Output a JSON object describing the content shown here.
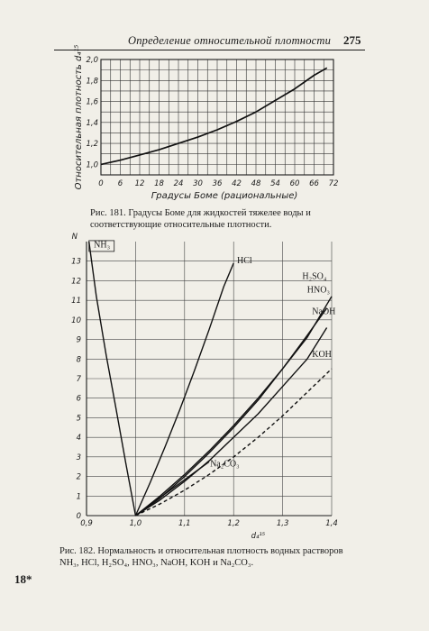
{
  "page": {
    "running_head": "Определение относительной плотности",
    "page_number": "275",
    "signature_mark": "18*"
  },
  "captions": {
    "fig181": "Рис. 181. Градусы Боме для жидкостей тяжелее воды и соответствующие относительные плотности.",
    "fig182": "Рис. 182. Нормальность и относительная плотность водных растворов NH₃, HCl, H₂SO₄, HNO₃, NaOH, KOH и Na₂CO₃."
  },
  "chart_data": [
    {
      "type": "line",
      "xlabel": "Градусы Боме (рациональные)",
      "ylabel": "Относительная плотность d₄¹⁵",
      "x_ticks": [
        "0",
        "6",
        "12",
        "18",
        "24",
        "30",
        "36",
        "42",
        "48",
        "54",
        "60",
        "66",
        "72"
      ],
      "y_ticks": [
        "1,0",
        "1,2",
        "1,4",
        "1,6",
        "1,8",
        "2,0"
      ],
      "xlim": [
        0,
        72
      ],
      "ylim": [
        0.9,
        2.0
      ],
      "grid": true,
      "series": [
        {
          "x": [
            0,
            6,
            12,
            18,
            24,
            30,
            36,
            42,
            48,
            54,
            60,
            66,
            70
          ],
          "y": [
            1.0,
            1.04,
            1.09,
            1.14,
            1.2,
            1.26,
            1.33,
            1.41,
            1.5,
            1.61,
            1.72,
            1.85,
            1.92
          ]
        }
      ]
    },
    {
      "type": "line",
      "xlabel": "d₄¹⁵",
      "ylabel": "N",
      "x_ticks": [
        "0,9",
        "1,0",
        "1,1",
        "1,2",
        "1,3",
        "1,4"
      ],
      "y_ticks": [
        "0",
        "1",
        "2",
        "3",
        "4",
        "5",
        "6",
        "7",
        "8",
        "9",
        "10",
        "11",
        "12",
        "13"
      ],
      "xlim": [
        0.9,
        1.4
      ],
      "ylim": [
        0,
        14
      ],
      "grid": true,
      "series": [
        {
          "name": "NH₃",
          "x": [
            0.905,
            0.92,
            0.94,
            0.96,
            0.98,
            1.0
          ],
          "y": [
            14,
            11.2,
            8.2,
            5.5,
            2.7,
            0
          ]
        },
        {
          "name": "HCl",
          "x": [
            1.0,
            1.03,
            1.06,
            1.09,
            1.12,
            1.15,
            1.18,
            1.2
          ],
          "y": [
            0,
            1.7,
            3.5,
            5.4,
            7.4,
            9.5,
            11.7,
            12.9
          ]
        },
        {
          "name": "H₂SO₄",
          "x": [
            1.0,
            1.05,
            1.1,
            1.15,
            1.2,
            1.25,
            1.3,
            1.35,
            1.4
          ],
          "y": [
            0,
            1.0,
            2.1,
            3.3,
            4.6,
            6.0,
            7.5,
            9.1,
            11.2
          ]
        },
        {
          "name": "HNO₃",
          "x": [
            1.0,
            1.05,
            1.1,
            1.15,
            1.2,
            1.25,
            1.3,
            1.35,
            1.39
          ],
          "y": [
            0,
            0.9,
            2.0,
            3.2,
            4.5,
            5.9,
            7.5,
            9.2,
            10.6
          ]
        },
        {
          "name": "NaOH",
          "x": [
            1.0,
            1.05,
            1.1,
            1.15,
            1.2,
            1.25,
            1.3,
            1.35,
            1.39
          ],
          "y": [
            0,
            0.8,
            1.75,
            2.8,
            4.0,
            5.2,
            6.6,
            8.0,
            9.6
          ]
        },
        {
          "name": "KOH",
          "x": [
            1.0,
            1.05,
            1.1,
            1.15,
            1.2,
            1.25,
            1.3,
            1.35,
            1.4
          ],
          "y": [
            0,
            0.6,
            1.3,
            2.1,
            3.0,
            4.0,
            5.1,
            6.3,
            7.5
          ]
        },
        {
          "name": "Na₂CO₃",
          "x": [
            1.0,
            1.03,
            1.06,
            1.09,
            1.12,
            1.15
          ],
          "y": [
            0,
            0.55,
            1.1,
            1.65,
            2.2,
            2.75
          ]
        }
      ],
      "labels": [
        "NH₃",
        "HCl",
        "H₂SO₄",
        "HNO₃",
        "NaOH",
        "KOH",
        "Na₂CO₃"
      ]
    }
  ]
}
